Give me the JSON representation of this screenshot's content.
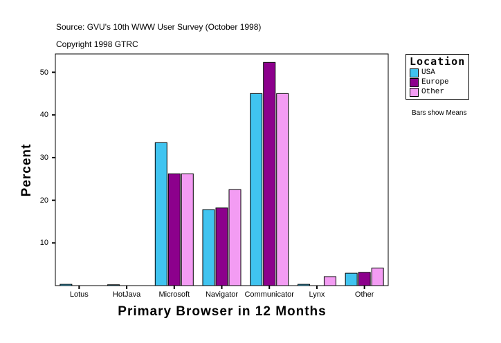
{
  "header": {
    "source": "Source: GVU's 10th WWW User Survey (October 1998)",
    "copyright": "Copyright 1998 GTRC"
  },
  "chart_data": {
    "type": "bar",
    "xlabel": "Primary Browser in 12 Months",
    "ylabel": "Percent",
    "categories": [
      "Lotus",
      "HotJava",
      "Microsoft",
      "Navigator",
      "Communicator",
      "Lynx",
      "Other"
    ],
    "yticks": [
      10,
      20,
      30,
      40,
      50
    ],
    "ylim": [
      0,
      54
    ],
    "grid": false,
    "legend_position": "right",
    "legend_title": "Location",
    "note": "Bars show Means",
    "series": [
      {
        "name": "USA",
        "color": "#40c4f0",
        "values": [
          0.3,
          0.2,
          33.5,
          17.8,
          45.0,
          0.3,
          2.9
        ]
      },
      {
        "name": "Europe",
        "color": "#8c008c",
        "values": [
          0,
          0,
          26.2,
          18.2,
          52.3,
          0,
          3.1
        ]
      },
      {
        "name": "Other",
        "color": "#f39cf3",
        "values": [
          0,
          0,
          26.2,
          22.5,
          45.0,
          2.1,
          4.1
        ]
      }
    ]
  }
}
